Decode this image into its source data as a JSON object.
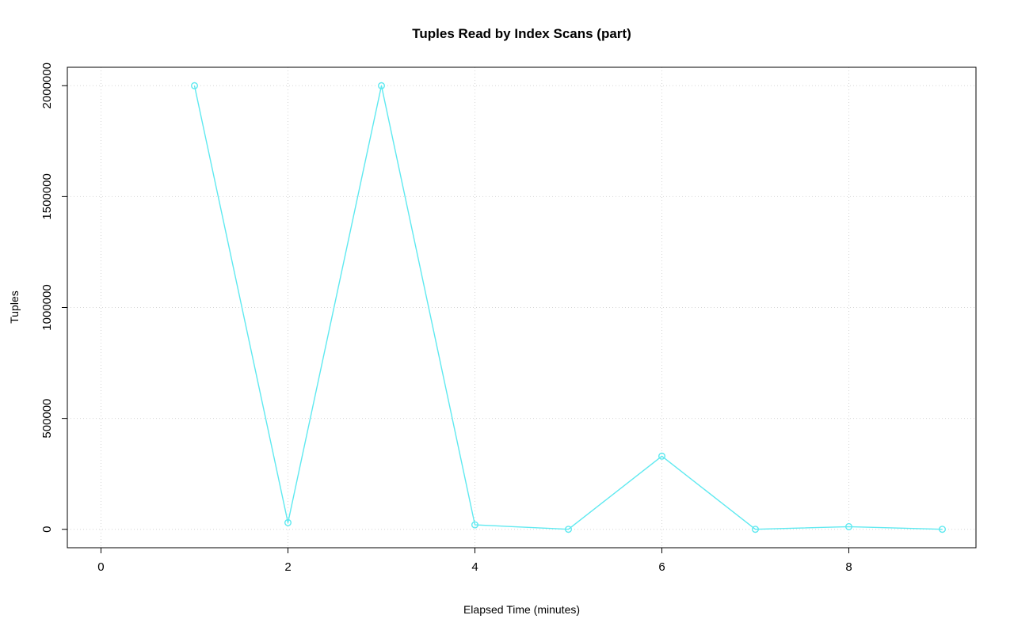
{
  "chart_data": {
    "type": "line",
    "title": "Tuples Read by Index Scans (part)",
    "xlabel": "Elapsed Time (minutes)",
    "ylabel": "Tuples",
    "x": [
      1,
      2,
      3,
      4,
      5,
      6,
      7,
      8,
      9
    ],
    "y": [
      2000000,
      30000,
      2000000,
      20000,
      0,
      330000,
      0,
      12000,
      0
    ],
    "xlim": [
      -0.36,
      9.36
    ],
    "ylim": [
      -83000,
      2083000
    ],
    "xticks": [
      0,
      2,
      4,
      6,
      8
    ],
    "xtick_labels": [
      "0",
      "2",
      "4",
      "6",
      "8"
    ],
    "yticks": [
      0,
      500000,
      1000000,
      1500000,
      2000000
    ],
    "ytick_labels": [
      "0",
      "500000",
      "1000000",
      "1500000",
      "2000000"
    ],
    "grid": true,
    "legend": "none",
    "line_color": "#5fe9f0",
    "grid_color": "#d6d6d6",
    "axis_color": "#000000",
    "background_color": "#ffffff",
    "marker": "open-circle"
  }
}
